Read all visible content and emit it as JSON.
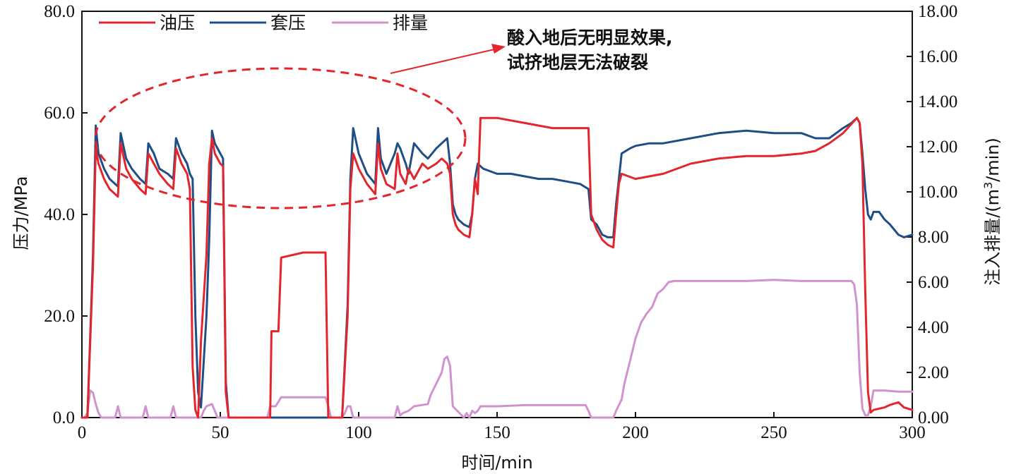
{
  "chart_data": {
    "type": "line",
    "xlabel": "时间/min",
    "ylabel_left": "压力/MPa",
    "ylabel_right_prefix": "注入排量/(m",
    "ylabel_right_sup": "3",
    "ylabel_right_suffix": "/min)",
    "xlim": [
      0,
      300
    ],
    "ylim_left": [
      0,
      80
    ],
    "ylim_right": [
      0,
      18
    ],
    "x_ticks": [
      "0",
      "50",
      "100",
      "150",
      "200",
      "250",
      "300"
    ],
    "y_left_ticks": [
      "0.0",
      "20.0",
      "40.0",
      "60.0",
      "80.0"
    ],
    "y_right_ticks": [
      "0.00",
      "2.00",
      "4.00",
      "6.00",
      "8.00",
      "10.00",
      "12.00",
      "14.00",
      "16.00",
      "18.00"
    ],
    "legend_position": "top-left",
    "annotation": {
      "line1": "酸入地后无明显效果,",
      "line2": "试挤地层无法破裂"
    },
    "colors": {
      "oil": "#e3262d",
      "casing": "#1f4e86",
      "rate": "#cf94cd",
      "annotation": "#e3262d"
    },
    "series": [
      {
        "name": "油压",
        "axis": "left",
        "x": [
          0,
          2,
          4,
          5,
          6,
          8,
          10,
          12,
          13,
          14,
          16,
          18,
          21,
          23,
          24,
          26,
          28,
          31,
          33,
          34,
          36,
          38,
          39,
          40,
          41,
          42,
          43,
          45,
          46,
          47,
          48,
          50,
          51,
          52,
          53,
          68,
          68.5,
          70,
          71,
          72,
          80,
          87,
          88,
          89,
          92,
          94,
          96,
          97,
          98,
          100,
          103,
          106,
          107,
          108,
          110,
          113,
          114,
          115,
          117,
          118,
          120,
          123,
          125,
          128,
          130,
          132,
          133,
          134,
          135,
          136,
          138,
          140,
          141,
          142,
          143,
          144,
          150,
          155,
          160,
          165,
          170,
          175,
          180,
          182,
          183,
          184,
          186,
          188,
          190,
          192,
          193,
          194,
          195,
          200,
          205,
          210,
          220,
          230,
          240,
          250,
          260,
          265,
          270,
          275,
          280,
          281,
          282,
          283,
          284,
          285,
          286,
          290,
          292,
          295,
          297,
          300
        ],
        "y": [
          0,
          0,
          30,
          53,
          50,
          47,
          45,
          44,
          43.5,
          54,
          49,
          47,
          45,
          44,
          52,
          50,
          48,
          46,
          45,
          53,
          50,
          48,
          45,
          10,
          1.5,
          0,
          15,
          32,
          50,
          55,
          52,
          50,
          49.5,
          5,
          0,
          0,
          17,
          17,
          17,
          31.5,
          32.5,
          32.5,
          32.5,
          0,
          0,
          0,
          20,
          45,
          52,
          49,
          46,
          44,
          54,
          49,
          46,
          45,
          52,
          48,
          46,
          49,
          47,
          50,
          49,
          50,
          51,
          50,
          48,
          40,
          38,
          37,
          36,
          35.5,
          40,
          47,
          44,
          59,
          59,
          58.5,
          58,
          57.5,
          57,
          57,
          57,
          57,
          57,
          40,
          37,
          35,
          34,
          33.5,
          40,
          46,
          48,
          47,
          47.5,
          48,
          50,
          51,
          51.5,
          51.5,
          52,
          52.5,
          54,
          56,
          59,
          58,
          50,
          25,
          5,
          1,
          1.5,
          2,
          2.5,
          3,
          2,
          1.5
        ]
      },
      {
        "name": "套压",
        "axis": "left",
        "x": [
          0,
          2,
          4,
          5,
          6,
          8,
          10,
          12,
          13,
          14,
          16,
          18,
          21,
          23,
          24,
          26,
          28,
          31,
          33,
          34,
          36,
          38,
          39,
          40,
          41,
          42,
          43,
          45,
          46,
          47,
          48,
          50,
          51,
          52,
          53,
          68,
          88,
          92,
          94,
          96,
          97,
          98,
          100,
          103,
          106,
          107,
          108,
          110,
          113,
          114,
          115,
          117,
          118,
          120,
          123,
          125,
          128,
          130,
          132,
          133,
          134,
          135,
          136,
          138,
          140,
          141,
          142,
          143,
          145,
          150,
          155,
          160,
          165,
          170,
          175,
          180,
          183,
          184,
          186,
          188,
          190,
          192,
          193,
          194,
          195,
          198,
          200,
          205,
          210,
          220,
          230,
          240,
          250,
          260,
          265,
          270,
          275,
          278,
          280,
          281,
          282,
          283,
          284,
          285,
          286,
          288,
          290,
          292,
          295,
          297,
          300
        ],
        "y": [
          0,
          0,
          32,
          57.5,
          52,
          49,
          47,
          46,
          45.5,
          56,
          51,
          49,
          47,
          46,
          54,
          52,
          49,
          48,
          47,
          55,
          52,
          50,
          48,
          47,
          20,
          5,
          2,
          20,
          35,
          56.5,
          54,
          52,
          51,
          7,
          0,
          0,
          0,
          0,
          0,
          22,
          47,
          57,
          52,
          48,
          46,
          57,
          51,
          48,
          52,
          54,
          53,
          50,
          48,
          54,
          52,
          51,
          53,
          54,
          55,
          50,
          42,
          40,
          39,
          38,
          37.5,
          40,
          47,
          50,
          49,
          48,
          48,
          47.5,
          47,
          47,
          46.5,
          46,
          45,
          39,
          38,
          36,
          35.5,
          35.5,
          42,
          47,
          52,
          53,
          53.5,
          54,
          54,
          55,
          56,
          56.5,
          56,
          56,
          55,
          55,
          57,
          58,
          59,
          58,
          52,
          45,
          40,
          39,
          40.5,
          40.5,
          39,
          38,
          36,
          35.5,
          36
        ]
      },
      {
        "name": "排量",
        "axis": "right",
        "x": [
          0,
          1,
          2,
          3,
          4,
          5,
          6,
          7,
          12,
          13,
          14,
          15,
          22,
          23,
          24,
          25,
          32,
          33,
          34,
          35,
          43,
          44,
          45,
          47,
          48,
          49,
          50,
          67,
          68,
          70,
          71,
          72,
          79,
          80,
          87,
          88,
          89,
          90,
          93,
          94,
          95,
          96,
          97,
          98,
          113,
          114,
          115,
          116,
          118,
          120,
          125,
          126,
          128,
          130,
          131,
          132,
          133,
          134,
          138,
          139,
          140,
          141,
          142,
          143,
          144,
          150,
          160,
          170,
          180,
          182,
          183,
          184,
          190,
          192,
          193,
          195,
          196,
          198,
          200,
          202,
          204,
          206,
          208,
          210,
          212,
          214,
          220,
          230,
          240,
          250,
          260,
          270,
          275,
          278,
          279,
          280,
          281,
          282,
          283,
          284,
          285,
          286,
          287,
          290,
          295,
          300
        ],
        "y": [
          0,
          0,
          0.2,
          1.2,
          1.1,
          0.6,
          0.2,
          0,
          0,
          0.5,
          0,
          0,
          0,
          0.5,
          0,
          0,
          0,
          0.5,
          0,
          0,
          0,
          0.3,
          0.5,
          0.6,
          0.3,
          0,
          0,
          0,
          0.5,
          0.5,
          0.7,
          0.9,
          0.9,
          0.9,
          0.9,
          0.9,
          0.5,
          0,
          0,
          0,
          0.2,
          0.5,
          0.5,
          0,
          0,
          0.5,
          0.1,
          0.2,
          0.3,
          0.5,
          0.6,
          1.0,
          1.5,
          2.0,
          2.6,
          2.7,
          2.3,
          0.5,
          0,
          0.2,
          0,
          0.3,
          0.2,
          0.3,
          0.5,
          0.5,
          0.55,
          0.55,
          0.55,
          0.55,
          0.3,
          0,
          0,
          0,
          0.3,
          0.8,
          1.5,
          2.5,
          3.5,
          4.2,
          4.6,
          4.9,
          5.5,
          5.7,
          6.0,
          6.05,
          6.05,
          6.05,
          6.05,
          6.1,
          6.05,
          6.05,
          6.05,
          6.05,
          5.9,
          5.0,
          2.0,
          0.4,
          0.1,
          0.1,
          0.5,
          1.2,
          1.2,
          1.2,
          1.15,
          1.15
        ]
      }
    ]
  }
}
